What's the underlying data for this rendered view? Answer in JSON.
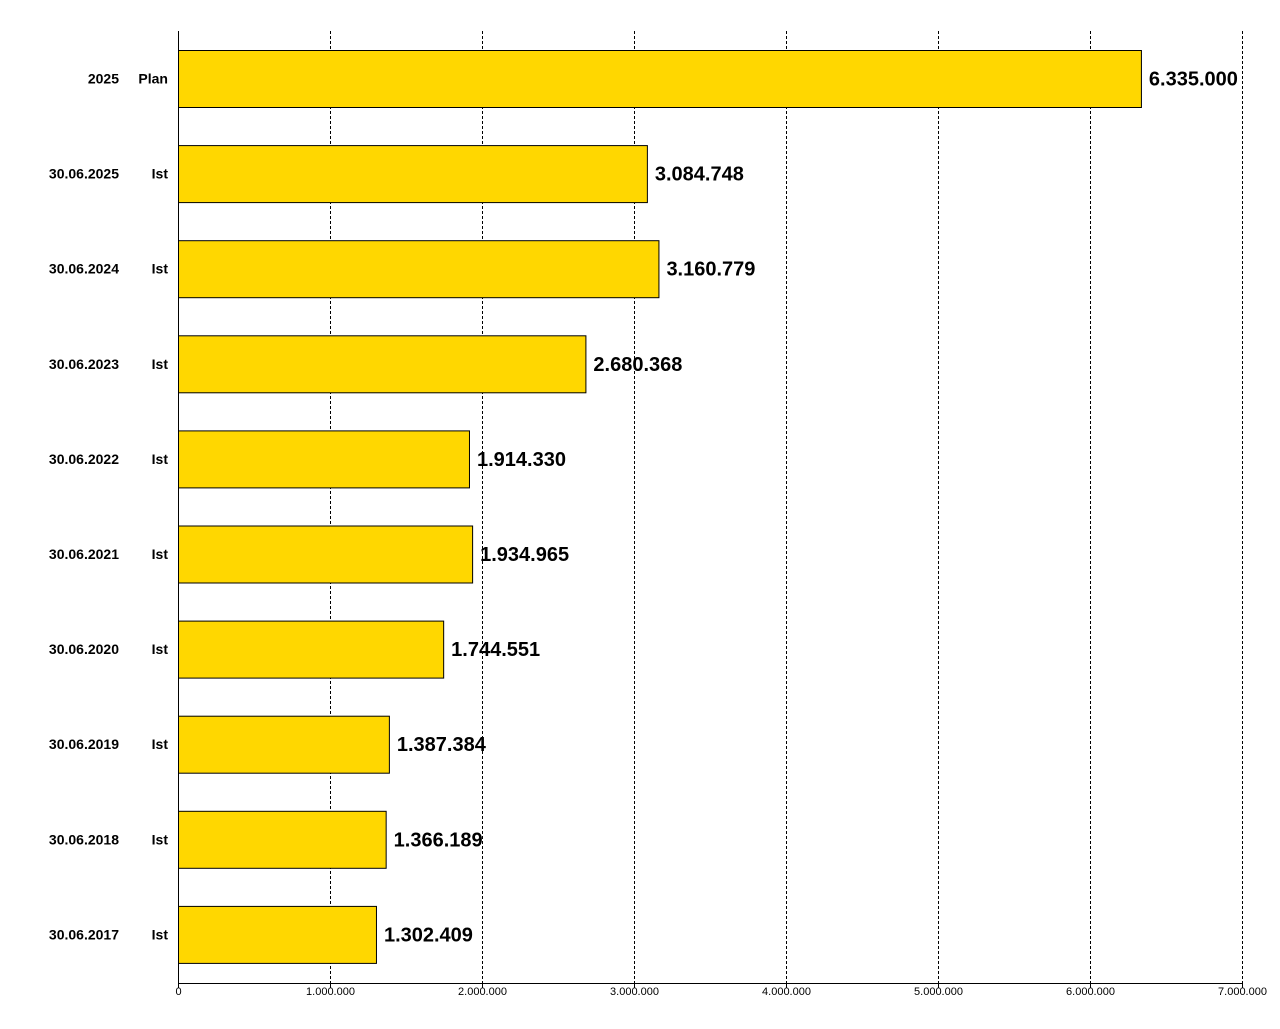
{
  "chart_data": {
    "type": "bar",
    "orientation": "horizontal",
    "title": "",
    "xlabel": "",
    "ylabel": "",
    "xlim": [
      0,
      7000000
    ],
    "grid": "vertical dashed",
    "bar_color": "#FFD700",
    "categories": [
      {
        "date": "2025",
        "kind": "Plan"
      },
      {
        "date": "30.06.2025",
        "kind": "Ist"
      },
      {
        "date": "30.06.2024",
        "kind": "Ist"
      },
      {
        "date": "30.06.2023",
        "kind": "Ist"
      },
      {
        "date": "30.06.2022",
        "kind": "Ist"
      },
      {
        "date": "30.06.2021",
        "kind": "Ist"
      },
      {
        "date": "30.06.2020",
        "kind": "Ist"
      },
      {
        "date": "30.06.2019",
        "kind": "Ist"
      },
      {
        "date": "30.06.2018",
        "kind": "Ist"
      },
      {
        "date": "30.06.2017",
        "kind": "Ist"
      }
    ],
    "values": [
      6335000,
      3084748,
      3160779,
      2680368,
      1914330,
      1934965,
      1744551,
      1387384,
      1366189,
      1302409
    ],
    "value_labels": [
      "6.335.000",
      "3.084.748",
      "3.160.779",
      "2.680.368",
      "1.914.330",
      "1.934.965",
      "1.744.551",
      "1.387.384",
      "1.366.189",
      "1.302.409"
    ],
    "x_ticks": [
      0,
      1000000,
      2000000,
      3000000,
      4000000,
      5000000,
      6000000,
      7000000
    ],
    "x_tick_labels": [
      "0",
      "1.000.000",
      "2.000.000",
      "3.000.000",
      "4.000.000",
      "5.000.000",
      "6.000.000",
      "7.000.000"
    ]
  }
}
